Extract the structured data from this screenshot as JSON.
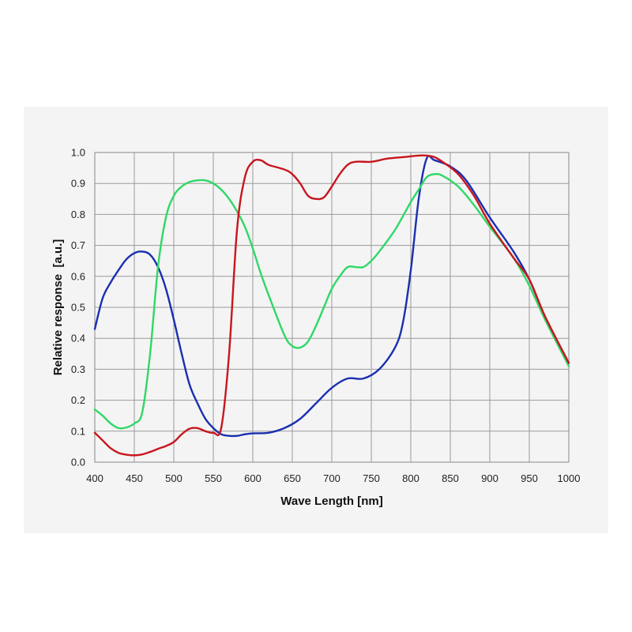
{
  "chart_data": {
    "type": "line",
    "xlabel": "Wave Length [nm]",
    "ylabel": "Relative response  [a.u.]",
    "xlim": [
      400,
      1000
    ],
    "ylim": [
      0,
      1.0
    ],
    "x_ticks": [
      "400",
      "450",
      "500",
      "550",
      "600",
      "650",
      "700",
      "750",
      "800",
      "850",
      "900",
      "950",
      "1000"
    ],
    "y_ticks": [
      "0.0",
      "0.1",
      "0.2",
      "0.3",
      "0.4",
      "0.5",
      "0.6",
      "0.7",
      "0.8",
      "0.9",
      "1.0"
    ],
    "grid": true,
    "series": [
      {
        "color": "#1a2fb0",
        "x": [
          400,
          410,
          420,
          430,
          440,
          450,
          460,
          470,
          480,
          490,
          500,
          510,
          520,
          530,
          540,
          550,
          560,
          570,
          580,
          590,
          600,
          620,
          640,
          660,
          680,
          700,
          720,
          740,
          760,
          780,
          790,
          800,
          810,
          820,
          830,
          850,
          870,
          900,
          930,
          950,
          970,
          1000
        ],
        "y": [
          0.43,
          0.53,
          0.58,
          0.62,
          0.655,
          0.675,
          0.68,
          0.67,
          0.63,
          0.56,
          0.46,
          0.35,
          0.25,
          0.19,
          0.14,
          0.11,
          0.09,
          0.085,
          0.085,
          0.09,
          0.093,
          0.095,
          0.11,
          0.14,
          0.19,
          0.24,
          0.27,
          0.27,
          0.3,
          0.37,
          0.45,
          0.62,
          0.85,
          0.98,
          0.975,
          0.955,
          0.91,
          0.79,
          0.68,
          0.59,
          0.47,
          0.32
        ]
      },
      {
        "color": "#2fd866",
        "x": [
          400,
          410,
          420,
          430,
          440,
          450,
          460,
          470,
          480,
          490,
          500,
          510,
          520,
          530,
          540,
          550,
          560,
          570,
          580,
          590,
          600,
          610,
          620,
          640,
          650,
          660,
          670,
          680,
          690,
          700,
          710,
          720,
          730,
          740,
          750,
          760,
          780,
          800,
          810,
          820,
          830,
          840,
          860,
          880,
          900,
          930,
          950,
          970,
          1000
        ],
        "y": [
          0.17,
          0.15,
          0.125,
          0.11,
          0.112,
          0.125,
          0.16,
          0.35,
          0.63,
          0.79,
          0.86,
          0.89,
          0.905,
          0.91,
          0.91,
          0.9,
          0.88,
          0.85,
          0.81,
          0.76,
          0.69,
          0.61,
          0.54,
          0.41,
          0.375,
          0.37,
          0.39,
          0.44,
          0.5,
          0.56,
          0.6,
          0.63,
          0.63,
          0.63,
          0.65,
          0.68,
          0.75,
          0.84,
          0.88,
          0.92,
          0.93,
          0.925,
          0.89,
          0.83,
          0.76,
          0.66,
          0.57,
          0.46,
          0.31
        ]
      },
      {
        "color": "#c8161d",
        "x": [
          400,
          410,
          420,
          430,
          440,
          450,
          460,
          470,
          480,
          490,
          500,
          510,
          520,
          530,
          540,
          550,
          560,
          570,
          580,
          590,
          600,
          610,
          620,
          640,
          650,
          660,
          670,
          680,
          690,
          700,
          710,
          720,
          730,
          750,
          770,
          790,
          810,
          820,
          830,
          840,
          860,
          880,
          900,
          930,
          950,
          970,
          1000
        ],
        "y": [
          0.095,
          0.07,
          0.045,
          0.03,
          0.024,
          0.022,
          0.025,
          0.033,
          0.043,
          0.052,
          0.065,
          0.09,
          0.108,
          0.11,
          0.1,
          0.095,
          0.11,
          0.35,
          0.75,
          0.92,
          0.97,
          0.975,
          0.96,
          0.945,
          0.93,
          0.9,
          0.86,
          0.85,
          0.855,
          0.89,
          0.93,
          0.96,
          0.97,
          0.97,
          0.98,
          0.985,
          0.99,
          0.99,
          0.985,
          0.97,
          0.93,
          0.86,
          0.77,
          0.66,
          0.59,
          0.47,
          0.32
        ]
      }
    ]
  }
}
